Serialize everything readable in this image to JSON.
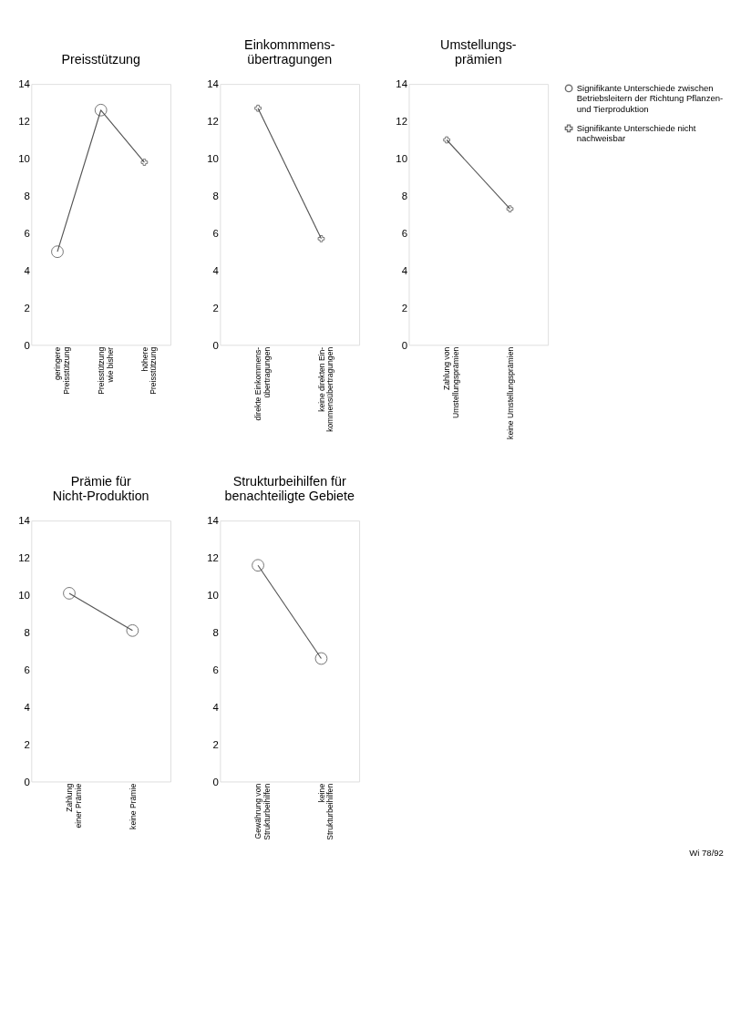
{
  "chart_data": [
    {
      "type": "line",
      "title": "Preisstützung",
      "categories": [
        "geringere\nPreisstützung",
        "Preisstützung\nwie bisher",
        "höhere\nPreisstützung"
      ],
      "ylim": [
        0,
        14
      ],
      "yticks": [
        0,
        2,
        4,
        6,
        8,
        10,
        12,
        14
      ],
      "grid": false,
      "legend": false,
      "series": [
        {
          "color": "#555555",
          "values": [
            5.0,
            12.6,
            9.8
          ]
        },
        {
          "type": "scatter",
          "marker": "circle",
          "color": "#333333",
          "values": [
            5.0,
            12.6,
            null
          ]
        },
        {
          "type": "scatter",
          "marker": "cross",
          "color": "#333333",
          "values": [
            null,
            null,
            9.8
          ]
        }
      ]
    },
    {
      "type": "line",
      "title": "Einkommmens-\nübertragungen",
      "categories": [
        "direkte Einkommens-\nübertragungen",
        "keine direkten Ein-\nkommensübertragungen"
      ],
      "ylim": [
        0,
        14
      ],
      "yticks": [
        0,
        2,
        4,
        6,
        8,
        10,
        12,
        14
      ],
      "grid": false,
      "legend": false,
      "series": [
        {
          "color": "#555555",
          "values": [
            12.7,
            5.7
          ]
        },
        {
          "type": "scatter",
          "marker": "cross",
          "color": "#333333",
          "values": [
            12.7,
            5.7
          ]
        }
      ]
    },
    {
      "type": "line",
      "title": "Umstellungs-\nprämien",
      "categories": [
        "Zahlung von\nUmstellungsprämien",
        "keine Umstellungsprämien"
      ],
      "ylim": [
        0,
        14
      ],
      "yticks": [
        0,
        2,
        4,
        6,
        8,
        10,
        12,
        14
      ],
      "grid": false,
      "legend": false,
      "series": [
        {
          "color": "#555555",
          "values": [
            11.0,
            7.3
          ]
        },
        {
          "type": "scatter",
          "marker": "cross",
          "color": "#333333",
          "values": [
            11.0,
            7.3
          ]
        }
      ]
    },
    {
      "type": "line",
      "title": "Prämie für\nNicht-Produktion",
      "categories": [
        "Zahlung\neiner Prämie",
        "keine Prämie"
      ],
      "ylim": [
        0,
        14
      ],
      "yticks": [
        0,
        2,
        4,
        6,
        8,
        10,
        12,
        14
      ],
      "grid": false,
      "legend": false,
      "series": [
        {
          "color": "#555555",
          "values": [
            10.1,
            8.1
          ]
        },
        {
          "type": "scatter",
          "marker": "circle",
          "color": "#333333",
          "values": [
            10.1,
            8.1
          ]
        }
      ]
    },
    {
      "type": "line",
      "title": "Strukturbeihilfen für\nbenachteiligte Gebiete",
      "categories": [
        "Gewährung von\nStrukturbeihilfen",
        "keine\nStrukturbeihilfen"
      ],
      "ylim": [
        0,
        14
      ],
      "yticks": [
        0,
        2,
        4,
        6,
        8,
        10,
        12,
        14
      ],
      "grid": false,
      "legend": "right",
      "annotations": [
        "Wi 78/92"
      ],
      "series": [
        {
          "color": "#555555",
          "values": [
            11.6,
            6.6
          ]
        },
        {
          "type": "scatter",
          "marker": "circle",
          "color": "#333333",
          "name": "Signifikante Unterschiede zwischen\nBetriebsleitern der Richtung Pflanzen-\nund Tierproduktion",
          "values": [
            11.6,
            6.6
          ]
        },
        {
          "type": "scatter",
          "marker": "cross",
          "color": "#333333",
          "name": "Signifikante Unterschiede nicht\nnachweisbar",
          "values": [
            null,
            null
          ]
        }
      ]
    }
  ]
}
